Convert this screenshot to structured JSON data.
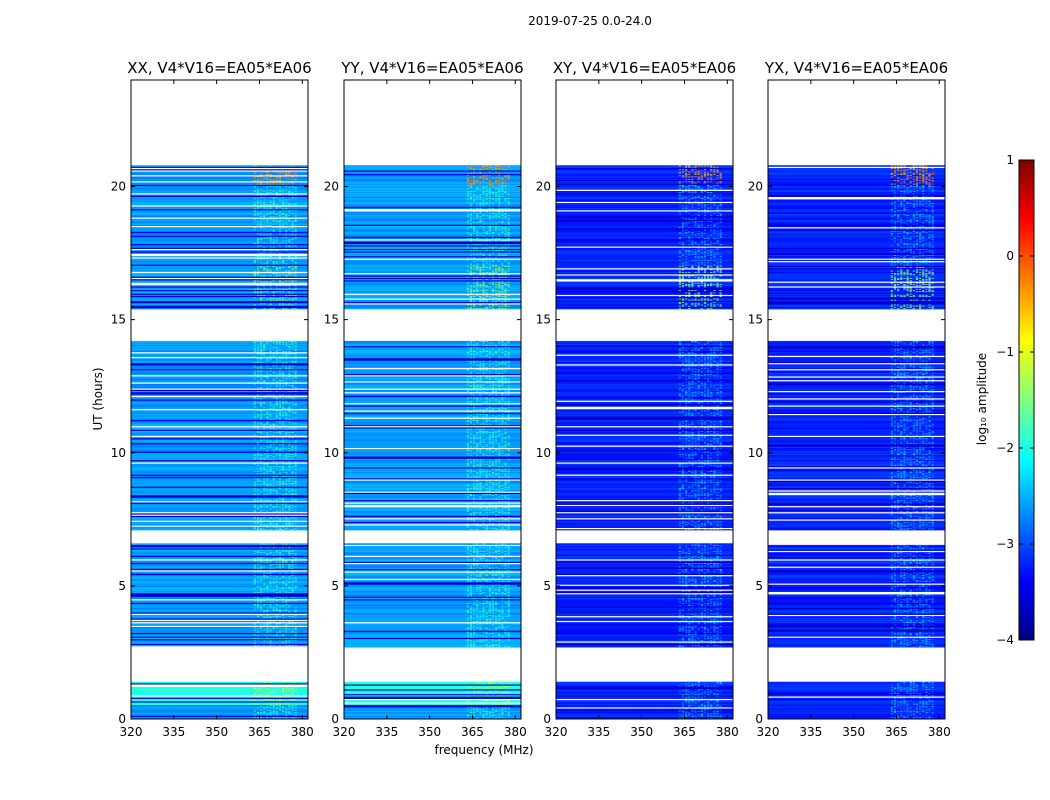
{
  "chart_data": {
    "type": "heatmap",
    "title": "2019-07-25 0.0-24.0",
    "xlabel": "frequency (MHz)",
    "ylabel": "UT (hours)",
    "xlim": [
      320,
      382
    ],
    "ylim": [
      0,
      24
    ],
    "xticks": [
      320,
      335,
      350,
      365,
      380
    ],
    "yticks": [
      0,
      5,
      10,
      15,
      20
    ],
    "colorbar": {
      "label": "log₁₀ amplitude",
      "range": [
        -4,
        1
      ],
      "ticks": [
        -4,
        -3,
        -2,
        -1,
        0,
        1
      ],
      "tick_labels": [
        "−4",
        "−3",
        "−2",
        "−1",
        "0",
        "1"
      ],
      "colormap": "jet",
      "stops": [
        "#00007f",
        "#0000ff",
        "#007fff",
        "#00ffff",
        "#7fff7f",
        "#ffff00",
        "#ff7f00",
        "#ff0000",
        "#7f0000"
      ]
    },
    "data_segments_ut": [
      [
        0.0,
        1.4
      ],
      [
        2.7,
        6.6
      ],
      [
        7.1,
        14.2
      ],
      [
        15.4,
        20.8
      ]
    ],
    "rfi_band_mhz": [
      363,
      378
    ],
    "panels": [
      {
        "name": "XX",
        "title": "XX, V4*V16=EA05*EA06",
        "baseline_level": -2.4
      },
      {
        "name": "YY",
        "title": "YY, V4*V16=EA05*EA06",
        "baseline_level": -2.4
      },
      {
        "name": "XY",
        "title": "XY, V4*V16=EA05*EA06",
        "baseline_level": -3.0
      },
      {
        "name": "YX",
        "title": "YX, V4*V16=EA05*EA06",
        "baseline_level": -3.0
      }
    ]
  }
}
